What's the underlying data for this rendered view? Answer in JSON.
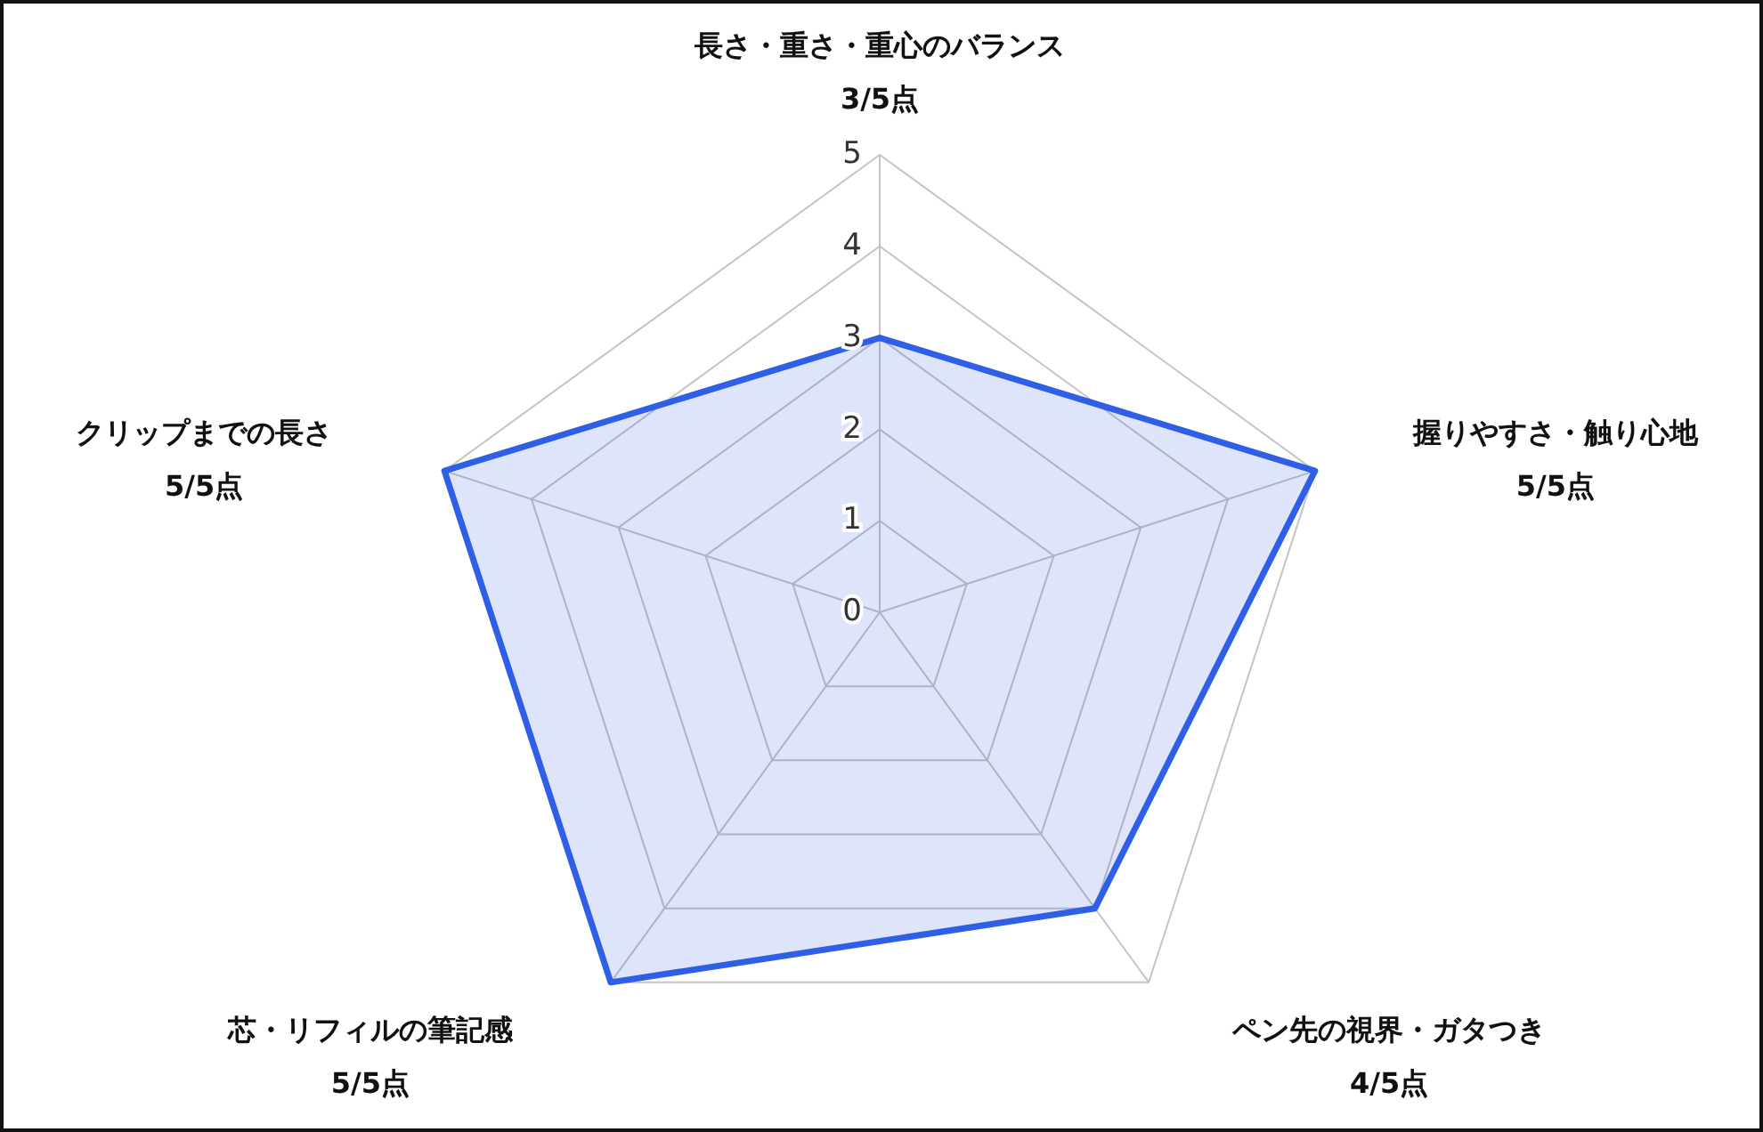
{
  "chart_data": {
    "type": "radar",
    "categories": [
      "長さ・重さ・重心のバランス\n3/5点",
      "握りやすさ・触り心地\n5/5点",
      "ペン先の視界・ガタつき\n4/5点",
      "芯・リフィルの筆記感\n5/5点",
      "クリップまでの長さ\n5/5点"
    ],
    "series": [
      {
        "color": "#2f5fe6",
        "values": [
          3,
          5,
          4,
          5,
          5
        ]
      }
    ],
    "ylim": [
      0,
      5
    ],
    "yticks": [
      0,
      1,
      2,
      3,
      4,
      5
    ],
    "grid": true
  }
}
